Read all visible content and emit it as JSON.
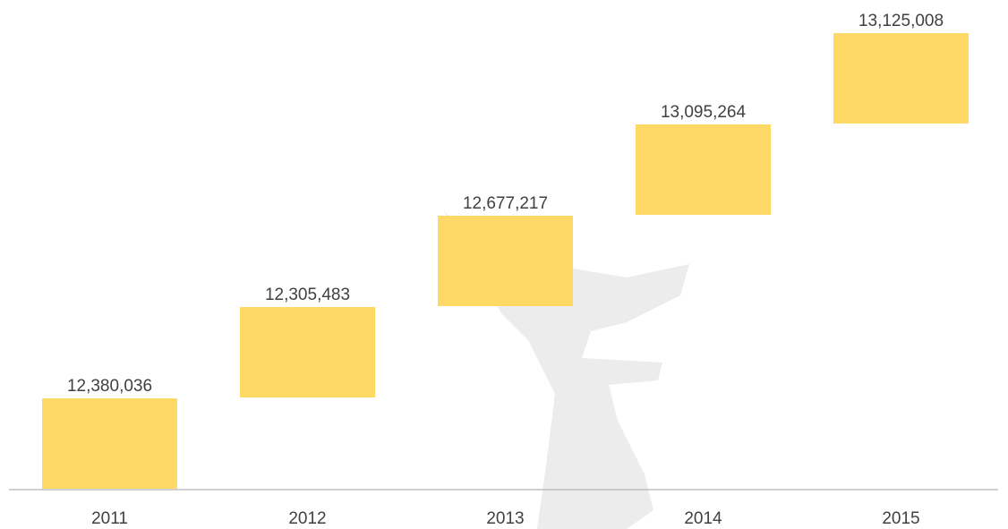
{
  "chart_data": {
    "type": "bar",
    "categories": [
      "2011",
      "2012",
      "2013",
      "2014",
      "2015"
    ],
    "values": [
      12380036,
      12305483,
      12677217,
      13095264,
      13125008
    ],
    "value_labels": [
      "12,380,036",
      "12,305,483",
      "12,677,217",
      "13,095,264",
      "13,125,008"
    ],
    "color": "#ffd966"
  }
}
